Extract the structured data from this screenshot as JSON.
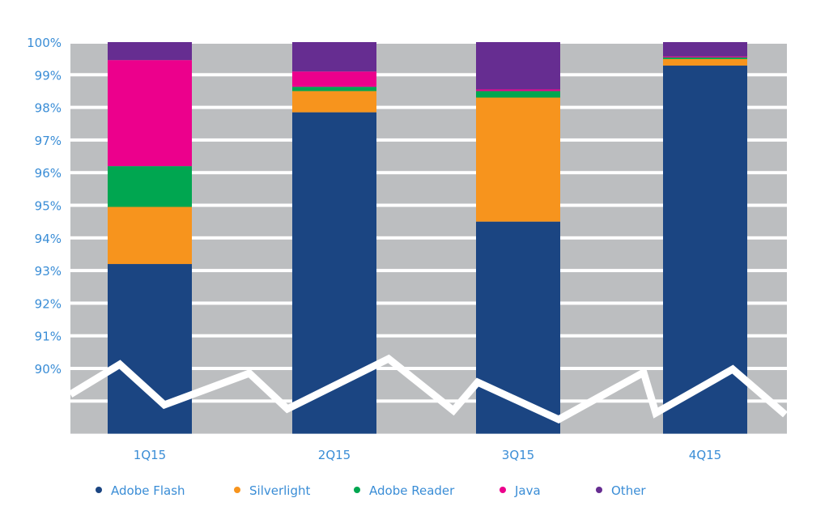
{
  "chart_data": {
    "type": "bar",
    "stacked": true,
    "categories": [
      "1Q15",
      "2Q15",
      "3Q15",
      "4Q15"
    ],
    "ylim": [
      88,
      100
    ],
    "yticks": [
      90,
      91,
      92,
      93,
      94,
      95,
      96,
      97,
      98,
      99,
      100
    ],
    "ytick_labels": [
      "90%",
      "91%",
      "92%",
      "93%",
      "94%",
      "95%",
      "96%",
      "97%",
      "98%",
      "99%",
      "100%"
    ],
    "axis_break": true,
    "grid": true,
    "legend_position": "bottom",
    "series": [
      {
        "name": "Adobe Flash",
        "color": "#1b4582",
        "values": [
          93.2,
          97.85,
          94.5,
          99.28
        ]
      },
      {
        "name": "Silverlight",
        "color": "#f7941d",
        "values": [
          1.75,
          0.65,
          3.8,
          0.2
        ]
      },
      {
        "name": "Adobe Reader",
        "color": "#00a650",
        "values": [
          1.25,
          0.13,
          0.2,
          0.05
        ]
      },
      {
        "name": "Java",
        "color": "#ec008c",
        "values": [
          3.25,
          0.47,
          0.05,
          0.03
        ]
      },
      {
        "name": "Other",
        "color": "#662d91",
        "values": [
          0.55,
          0.9,
          1.45,
          0.44
        ]
      }
    ],
    "background_color": "#bcbec0"
  }
}
